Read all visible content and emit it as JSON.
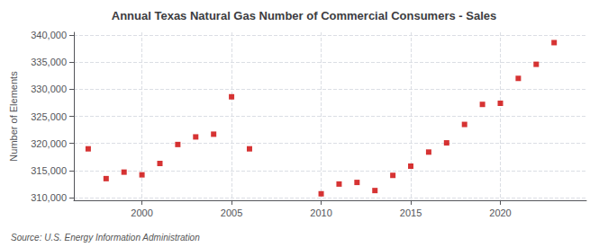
{
  "chart_data": {
    "type": "scatter",
    "title": "Annual Texas Natural Gas Number of Commercial Consumers - Sales",
    "ylabel": "Number of Elements",
    "source": "Source: U.S. Energy Information Administration",
    "x": [
      1997,
      1998,
      1999,
      2000,
      2001,
      2002,
      2003,
      2004,
      2005,
      2006,
      2010,
      2011,
      2012,
      2013,
      2014,
      2015,
      2016,
      2017,
      2018,
      2019,
      2020,
      2021,
      2022,
      2023
    ],
    "values": [
      319000,
      313500,
      314700,
      314200,
      316300,
      319800,
      321200,
      321700,
      328600,
      319000,
      310700,
      312500,
      312800,
      311300,
      314100,
      315800,
      318400,
      320100,
      323500,
      327200,
      327400,
      332000,
      334600,
      338600
    ],
    "color": "#cc0000",
    "marker": "square",
    "xlim": [
      1996.2,
      2024.8
    ],
    "xticks": [
      2000,
      2005,
      2010,
      2015,
      2020
    ],
    "ylim": [
      309500,
      340500
    ],
    "yticks": [
      {
        "value": 310000,
        "label": "310,000"
      },
      {
        "value": 315000,
        "label": "315,000"
      },
      {
        "value": 320000,
        "label": "320,000"
      },
      {
        "value": 325000,
        "label": "325,000"
      },
      {
        "value": 330000,
        "label": "330,000"
      },
      {
        "value": 335000,
        "label": "335,000"
      },
      {
        "value": 340000,
        "label": "340,000"
      }
    ],
    "grid": true
  }
}
